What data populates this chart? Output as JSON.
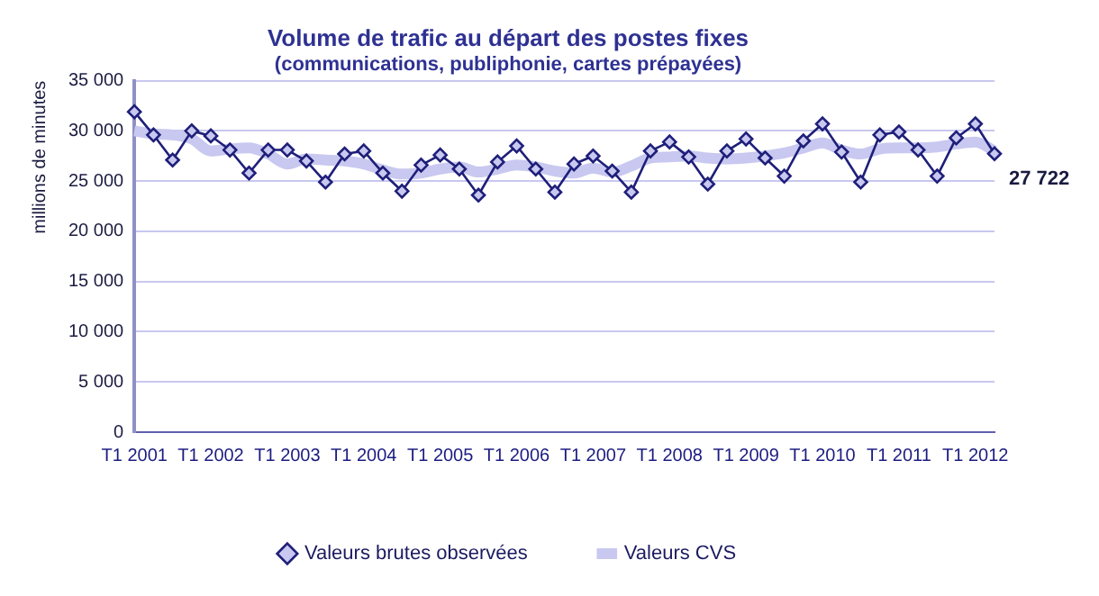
{
  "chart_data": {
    "type": "line",
    "title": "Volume de trafic au départ des postes fixes",
    "subtitle": "(communications, publiphonie, cartes prépayées)",
    "ylabel": "millions de minutes",
    "categories": [
      "T1 2001",
      null,
      null,
      null,
      "T1 2002",
      null,
      null,
      null,
      "T1 2003",
      null,
      null,
      null,
      "T1 2004",
      null,
      null,
      null,
      "T1 2005",
      null,
      null,
      null,
      "T1 2006",
      null,
      null,
      null,
      "T1 2007",
      null,
      null,
      null,
      "T1 2008",
      null,
      null,
      null,
      "T1 2009",
      null,
      null,
      null,
      "T1 2010",
      null,
      null,
      null,
      "T1 2011",
      null,
      null,
      null,
      "T1 2012",
      null
    ],
    "series": [
      {
        "name": "Valeurs brutes observées",
        "color": "#1f1f7a",
        "marker": "diamond",
        "values": [
          31900,
          29600,
          27100,
          30000,
          29500,
          28100,
          25800,
          28100,
          28100,
          27000,
          24900,
          27700,
          28000,
          25800,
          24000,
          26600,
          27600,
          26200,
          23600,
          26900,
          28500,
          26200,
          23900,
          26700,
          27500,
          26000,
          23900,
          28000,
          28900,
          27400,
          24700,
          28000,
          29200,
          27300,
          25500,
          29000,
          30700,
          27900,
          24900,
          29600,
          29900,
          28100,
          25500,
          29300,
          30700,
          27722
        ],
        "value_labels": [
          null,
          null,
          null,
          null,
          null,
          null,
          null,
          null,
          null,
          null,
          null,
          null,
          null,
          null,
          null,
          null,
          null,
          null,
          null,
          null,
          null,
          null,
          null,
          null,
          null,
          null,
          null,
          null,
          null,
          null,
          null,
          null,
          null,
          null,
          null,
          null,
          null,
          null,
          null,
          null,
          null,
          null,
          null,
          null,
          null,
          "27 722"
        ]
      },
      {
        "name": "Valeurs CVS",
        "color": "#c8c8f0",
        "marker": "none",
        "values": [
          30000,
          29700,
          29600,
          29200,
          28000,
          28200,
          28300,
          27700,
          26700,
          27200,
          27100,
          27000,
          26700,
          26100,
          25700,
          25800,
          26200,
          26400,
          25900,
          26200,
          26600,
          26400,
          26000,
          25800,
          26300,
          25900,
          26500,
          27300,
          27400,
          27500,
          27300,
          27200,
          27300,
          27500,
          27800,
          28300,
          28800,
          28100,
          27700,
          28200,
          28300,
          28300,
          28400,
          28700,
          28900,
          28000
        ]
      }
    ],
    "ylim": [
      0,
      35000
    ],
    "yticks": [
      {
        "value": 0,
        "label": "0"
      },
      {
        "value": 5000,
        "label": "5 000"
      },
      {
        "value": 10000,
        "label": "10 000"
      },
      {
        "value": 15000,
        "label": "15 000"
      },
      {
        "value": 20000,
        "label": "20 000"
      },
      {
        "value": 25000,
        "label": "25 000"
      },
      {
        "value": 30000,
        "label": "30 000"
      },
      {
        "value": 35000,
        "label": "35 000"
      }
    ],
    "grid": "y",
    "legend": "bottom",
    "line_style": "solid"
  }
}
